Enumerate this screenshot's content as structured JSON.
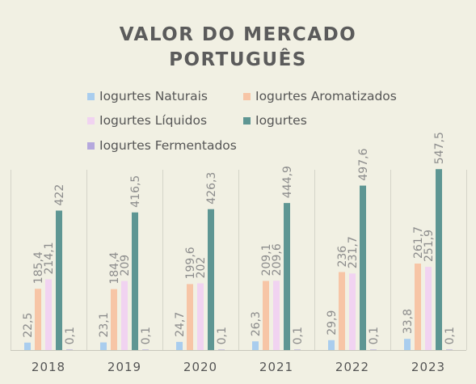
{
  "chart_data": {
    "type": "bar",
    "title_lines": [
      "VALOR DO MERCADO",
      "PORTUGUÊS"
    ],
    "categories": [
      "2018",
      "2019",
      "2020",
      "2021",
      "2022",
      "2023"
    ],
    "series": [
      {
        "name": "Iogurtes Naturais",
        "color": "#a9cdee",
        "values": [
          22.5,
          23.1,
          24.7,
          26.3,
          29.9,
          33.8
        ],
        "labels": [
          "22,5",
          "23,1",
          "24,7",
          "26,3",
          "29,9",
          "33,8"
        ]
      },
      {
        "name": "Iogurtes Aromatizados",
        "color": "#f7c5a6",
        "values": [
          185.4,
          184.4,
          199.6,
          209.1,
          236,
          261.7
        ],
        "labels": [
          "185,4",
          "184,4",
          "199,6",
          "209,1",
          "236",
          "261,7"
        ]
      },
      {
        "name": "Iogurtes Líquidos",
        "color": "#f1d3f1",
        "values": [
          214.1,
          209,
          202,
          209.6,
          231.7,
          251.9
        ],
        "labels": [
          "214,1",
          "209",
          "202",
          "209,6",
          "231,7",
          "251,9"
        ]
      },
      {
        "name": "Iogurtes",
        "color": "#5e9693",
        "values": [
          422,
          416.5,
          426.3,
          444.9,
          497.6,
          547.5
        ],
        "labels": [
          "422",
          "416,5",
          "426,3",
          "444,9",
          "497,6",
          "547,5"
        ]
      },
      {
        "name": "Iogurtes Fermentados",
        "color": "#b5a8dd",
        "values": [
          0.1,
          0.1,
          0.1,
          0.1,
          0.1,
          0.1
        ],
        "labels": [
          "0,1",
          "0,1",
          "0,1",
          "0,1",
          "0,1",
          "0,1"
        ]
      }
    ],
    "ylim": [
      0,
      570
    ],
    "grid": "vertical category separators",
    "legend_position": "top",
    "data_label_color": "#8c8c8c"
  }
}
